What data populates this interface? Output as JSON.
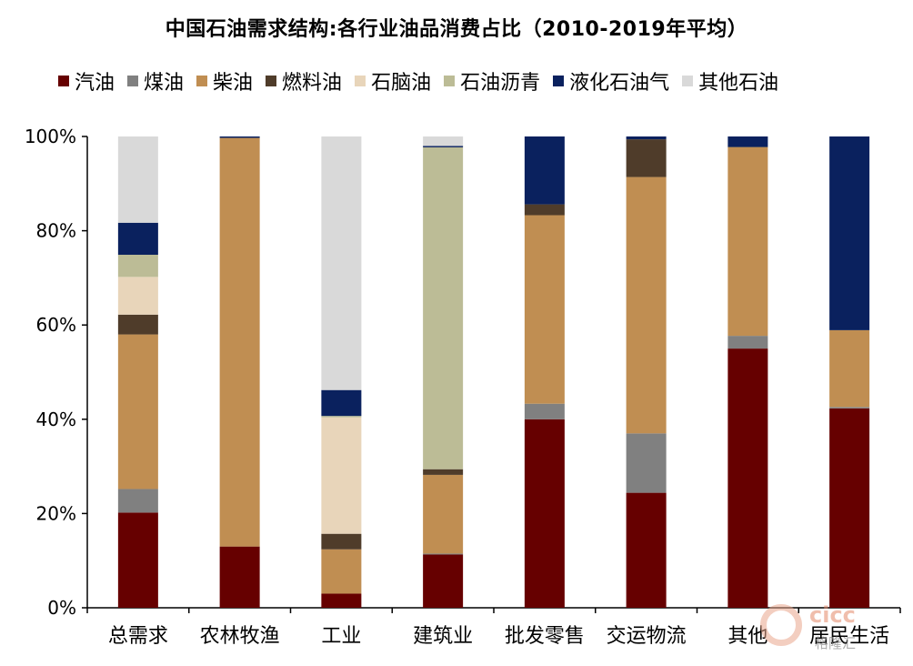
{
  "chart_data": {
    "type": "bar",
    "stacked": true,
    "title": "中国石油需求结构:各行业油品消费占比（2010-2019年平均）",
    "categories": [
      "总需求",
      "农林牧渔",
      "工业",
      "建筑业",
      "批发零售",
      "交运物流",
      "其他",
      "居民生活"
    ],
    "ylim": [
      0,
      100
    ],
    "yticks": [
      "0%",
      "20%",
      "40%",
      "60%",
      "80%",
      "100%"
    ],
    "legend_position": "top",
    "series": [
      {
        "name": "汽油",
        "color": "#660000",
        "values": [
          20.2,
          13.0,
          3.0,
          11.3,
          40.0,
          24.4,
          55.0,
          42.3
        ]
      },
      {
        "name": "煤油",
        "color": "#808080",
        "values": [
          5.0,
          0.0,
          0.0,
          0.2,
          3.3,
          12.6,
          2.7,
          0.3
        ]
      },
      {
        "name": "柴油",
        "color": "#c08e52",
        "values": [
          32.8,
          86.7,
          9.4,
          16.7,
          40.0,
          54.4,
          40.0,
          16.3
        ]
      },
      {
        "name": "燃料油",
        "color": "#4f3c2a",
        "values": [
          4.2,
          0.0,
          3.3,
          1.2,
          2.3,
          8.0,
          0.1,
          0.0
        ]
      },
      {
        "name": "石脑油",
        "color": "#e8d5ba",
        "values": [
          8.0,
          0.0,
          24.7,
          0.0,
          0.0,
          0.0,
          0.0,
          0.0
        ]
      },
      {
        "name": "石油沥青",
        "color": "#bcbc96",
        "values": [
          4.7,
          0.0,
          0.3,
          68.3,
          0.0,
          0.0,
          0.0,
          0.0
        ]
      },
      {
        "name": "液化石油气",
        "color": "#0a215e",
        "values": [
          6.8,
          0.3,
          5.5,
          0.3,
          14.4,
          0.6,
          2.2,
          41.1
        ]
      },
      {
        "name": "其他石油",
        "color": "#d9d9d9",
        "values": [
          18.3,
          0.0,
          53.8,
          2.0,
          0.0,
          0.0,
          0.0,
          0.0
        ]
      }
    ]
  },
  "watermark": {
    "logo_text": "cicc",
    "sub_text": "格隆汇"
  }
}
